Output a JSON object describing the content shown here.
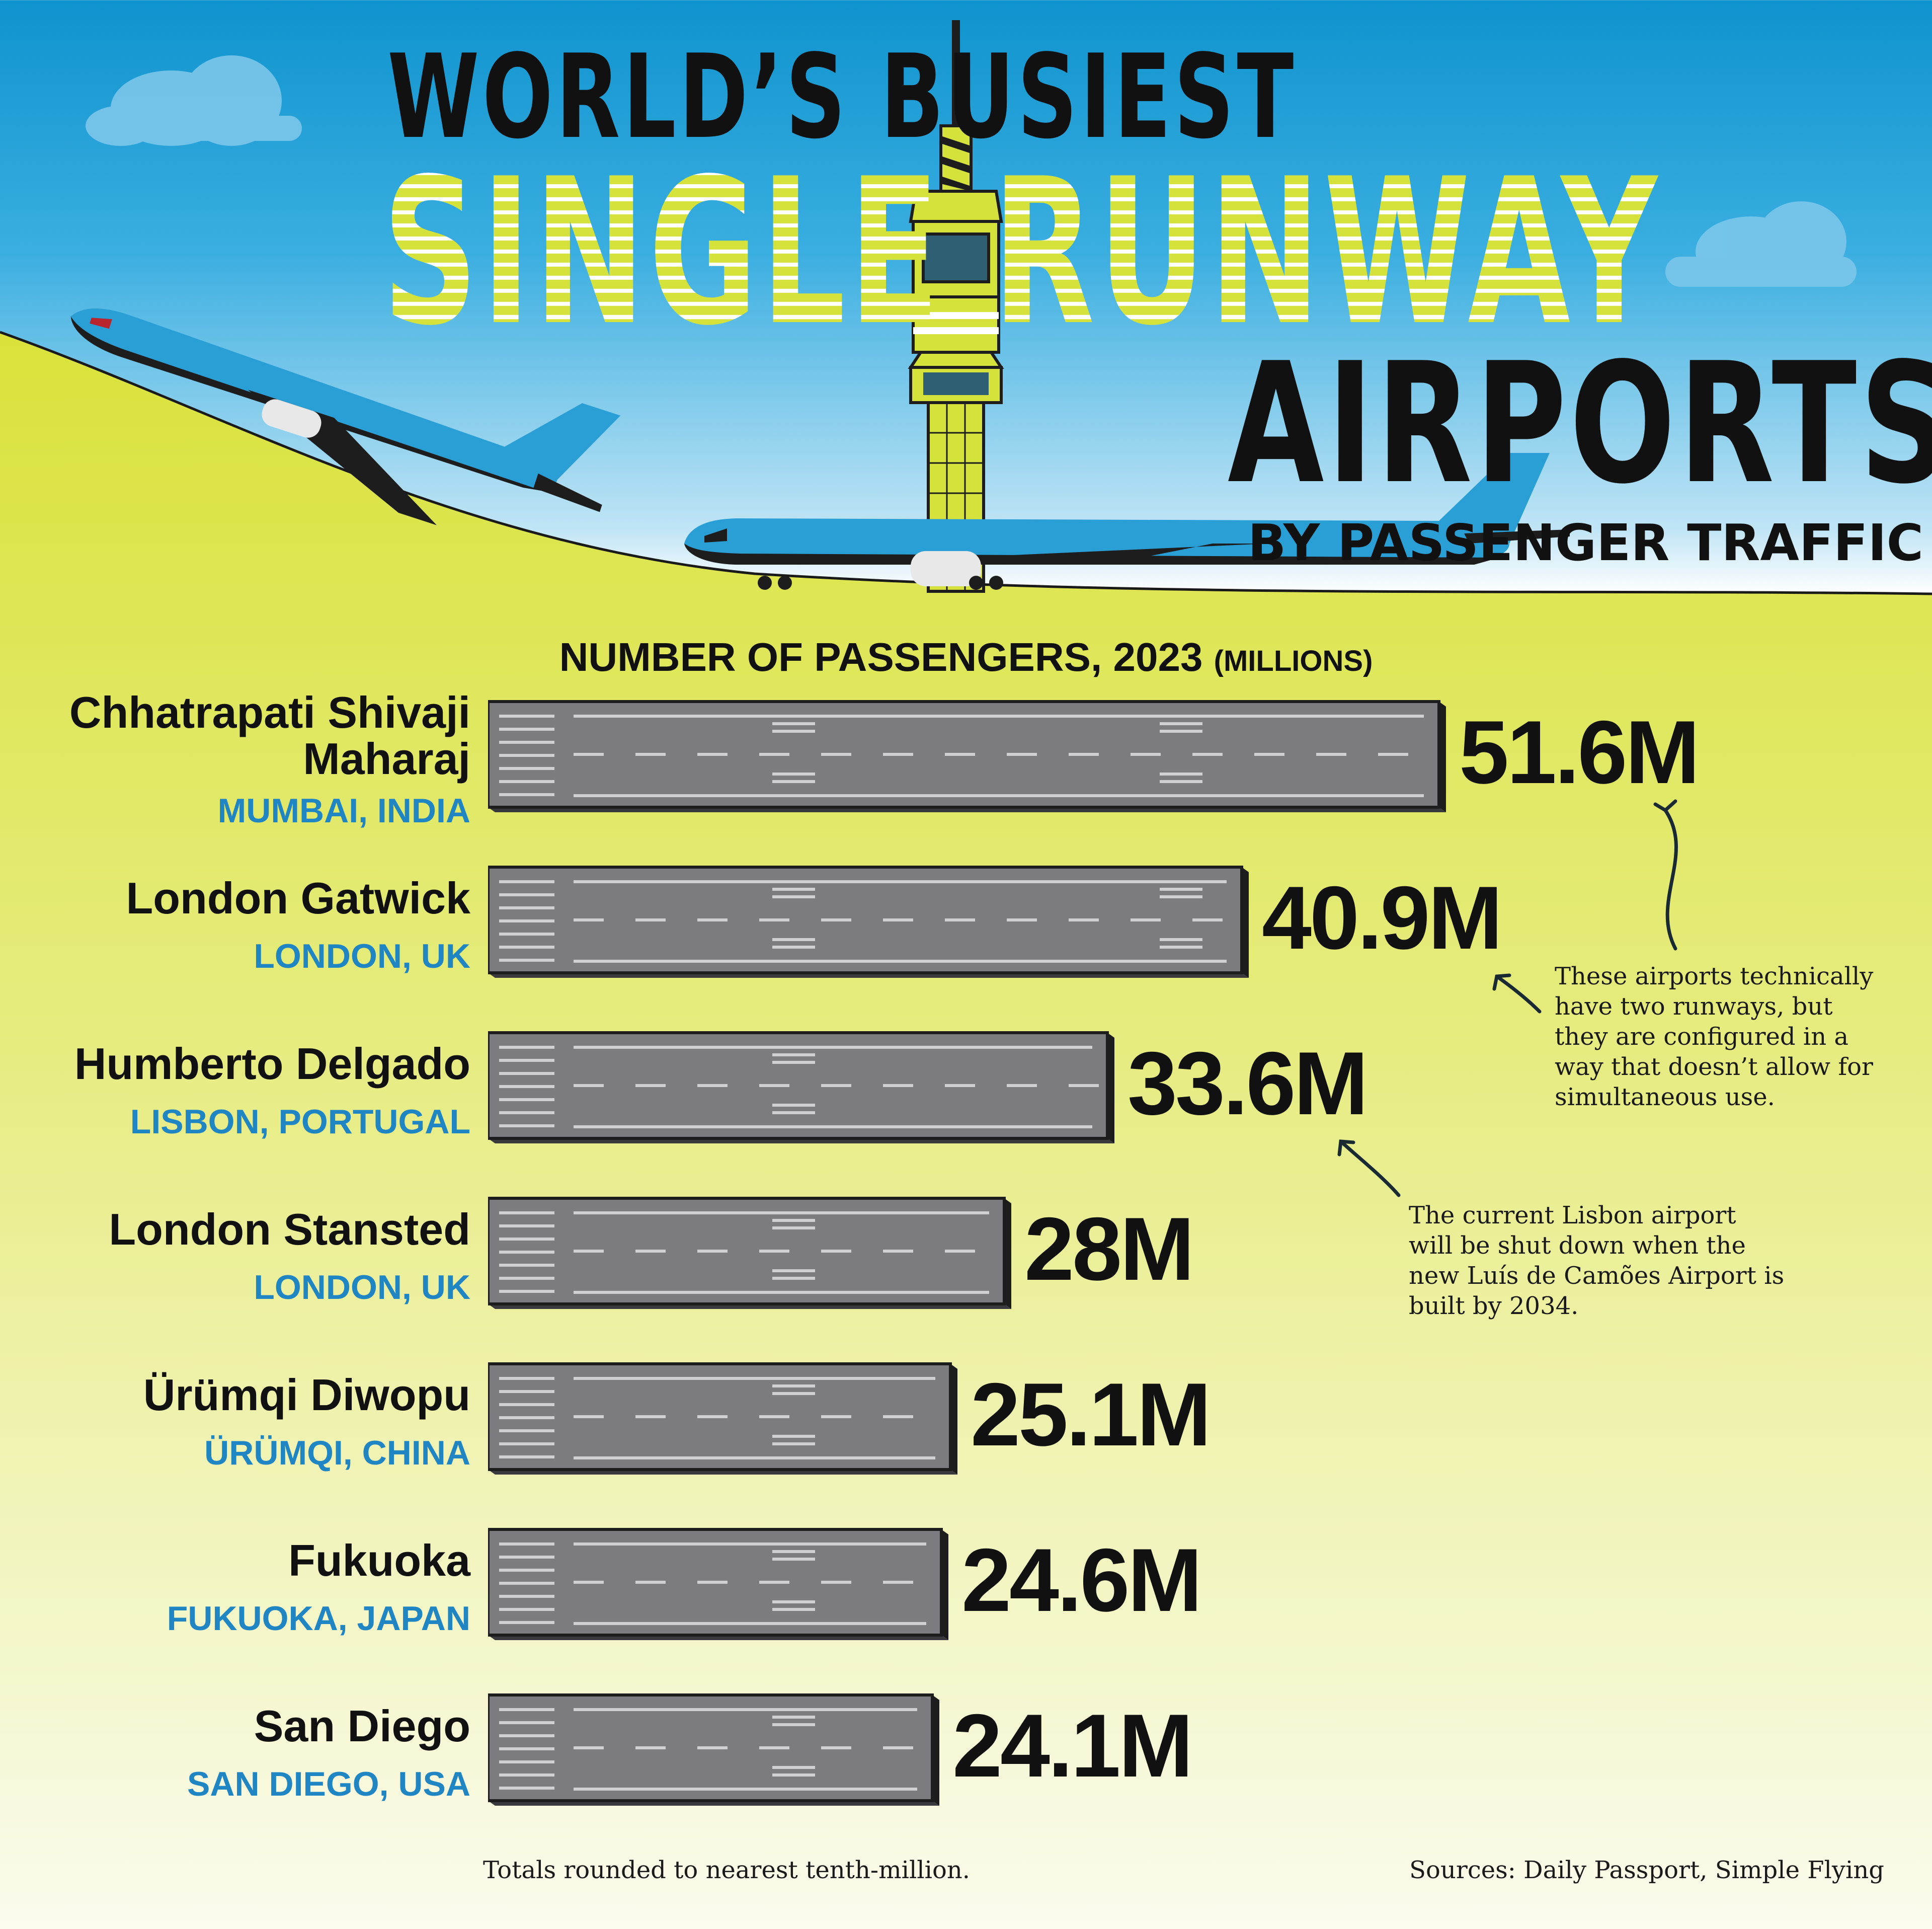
{
  "header": {
    "line1": "WORLD’S BUSIEST",
    "line2": "SINGLE RUNWAY",
    "line3": "AIRPORTS",
    "subtitle": "BY PASSENGER TRAFFIC"
  },
  "chart_title": {
    "main": "NUMBER OF PASSENGERS, 2023",
    "unit": "(MILLIONS)"
  },
  "chart_data": {
    "type": "bar",
    "orientation": "horizontal",
    "title": "NUMBER OF PASSENGERS, 2023 (MILLIONS)",
    "categories": [
      "Chhatrapati Shivaji Maharaj",
      "London Gatwick",
      "Humberto Delgado",
      "London Stansted",
      "Ürümqi Diwopu",
      "Fukuoka",
      "San Diego"
    ],
    "locations": [
      "MUMBAI, INDIA",
      "LONDON, UK",
      "LISBON, PORTUGAL",
      "LONDON, UK",
      "ÜRÜMQI, CHINA",
      "FUKUOKA, JAPAN",
      "SAN DIEGO, USA"
    ],
    "values": [
      51.6,
      40.9,
      33.6,
      28,
      25.1,
      24.6,
      24.1
    ],
    "value_labels": [
      "51.6M",
      "40.9M",
      "33.6M",
      "28M",
      "25.1M",
      "24.6M",
      "24.1M"
    ],
    "xlabel": "",
    "ylabel": "",
    "grid": false,
    "legend": "none"
  },
  "rows": [
    {
      "name": "Chhatrapati Shivaji Maharaj",
      "city": "MUMBAI, INDIA",
      "label": "51.6M"
    },
    {
      "name": "London Gatwick",
      "city": "LONDON, UK",
      "label": "40.9M"
    },
    {
      "name": "Humberto Delgado",
      "city": "LISBON, PORTUGAL",
      "label": "33.6M"
    },
    {
      "name": "London Stansted",
      "city": "LONDON, UK",
      "label": "28M"
    },
    {
      "name": "Ürümqi Diwopu",
      "city": "ÜRÜMQI, CHINA",
      "label": "25.1M"
    },
    {
      "name": "Fukuoka",
      "city": "FUKUOKA, JAPAN",
      "label": "24.6M"
    },
    {
      "name": "San Diego",
      "city": "SAN DIEGO, USA",
      "label": "24.1M"
    }
  ],
  "notes": {
    "two_runways": "These airports technically have two runways, but they are configured in a way that doesn’t allow for simultaneous use.",
    "lisbon": "The current Lisbon airport will be shut down when the new Luís de Camões Airport is built by 2034."
  },
  "footer": {
    "rounding": "Totals rounded to nearest tenth-million.",
    "sources": "Sources: Daily Passport, Simple Flying"
  },
  "colors": {
    "ground": "#dbe33d",
    "sky": "#1596d1",
    "plane": "#2a9fd6",
    "tower": "#d4e23b",
    "runway": "#7b7b80",
    "city": "#1f86c3"
  },
  "icons": [
    "cloud-icon",
    "airplane-icon",
    "control-tower-icon",
    "arrow-icon"
  ]
}
